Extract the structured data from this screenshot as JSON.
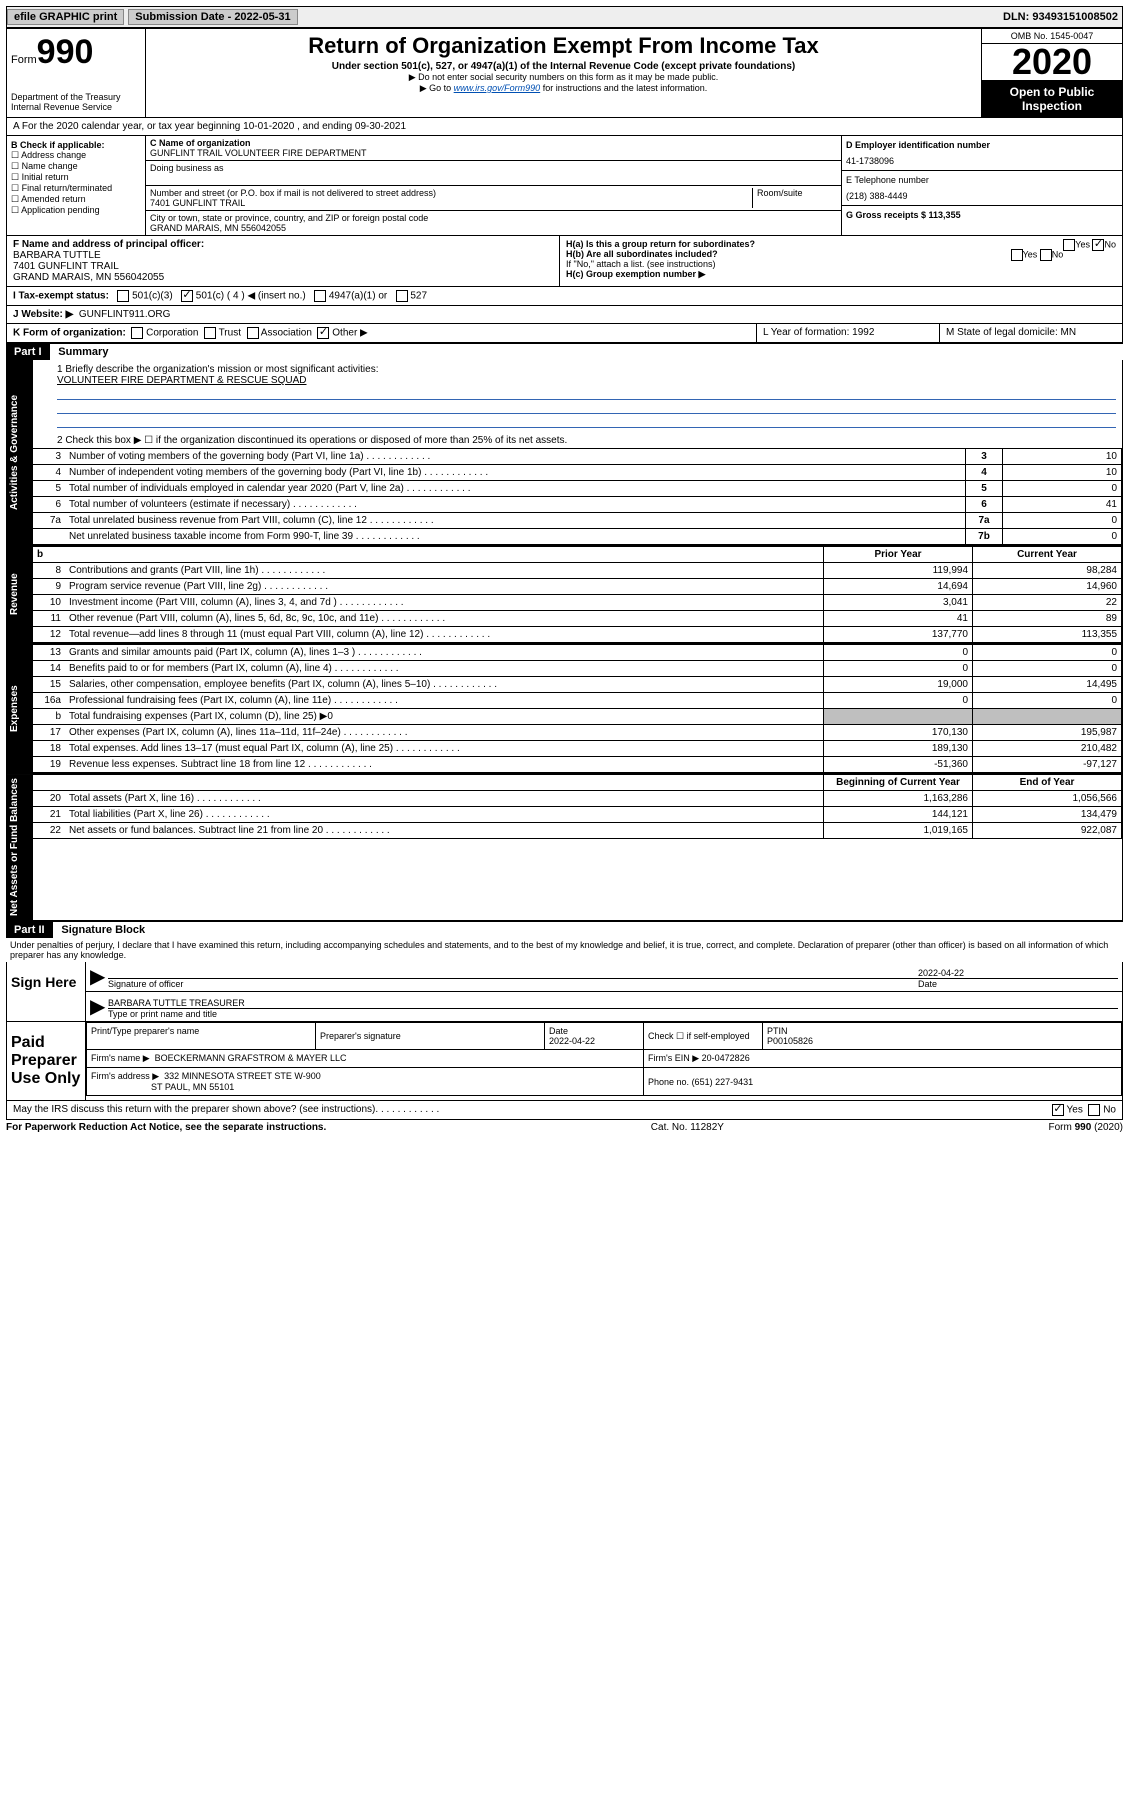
{
  "topbar": {
    "efile": "efile GRAPHIC print",
    "subdate_label": "Submission Date - 2022-05-31",
    "dln": "DLN: 93493151008502"
  },
  "header": {
    "form_label": "Form",
    "form_no": "990",
    "dept": "Department of the Treasury\nInternal Revenue Service",
    "title": "Return of Organization Exempt From Income Tax",
    "sub1": "Under section 501(c), 527, or 4947(a)(1) of the Internal Revenue Code (except private foundations)",
    "sub2": "▶ Do not enter social security numbers on this form as it may be made public.",
    "sub3_pre": "▶ Go to ",
    "sub3_link": "www.irs.gov/Form990",
    "sub3_post": " for instructions and the latest information.",
    "omb": "OMB No. 1545-0047",
    "year": "2020",
    "public": "Open to Public Inspection"
  },
  "lineA": "A For the 2020 calendar year, or tax year beginning 10-01-2020   , and ending 09-30-2021",
  "colB": {
    "title": "B Check if applicable:",
    "items": [
      "Address change",
      "Name change",
      "Initial return",
      "Final return/terminated",
      "Amended return",
      "Application pending"
    ]
  },
  "colC": {
    "name_label": "C Name of organization",
    "name": "GUNFLINT TRAIL VOLUNTEER FIRE DEPARTMENT",
    "dba_label": "Doing business as",
    "street_label": "Number and street (or P.O. box if mail is not delivered to street address)",
    "room_label": "Room/suite",
    "street": "7401 GUNFLINT TRAIL",
    "city_label": "City or town, state or province, country, and ZIP or foreign postal code",
    "city": "GRAND MARAIS, MN  556042055"
  },
  "colD": {
    "ein_label": "D Employer identification number",
    "ein": "41-1738096",
    "phone_label": "E Telephone number",
    "phone": "(218) 388-4449",
    "gross_label": "G Gross receipts $ 113,355"
  },
  "rowF": {
    "f_label": "F Name and address of principal officer:",
    "name": "BARBARA TUTTLE",
    "street": "7401 GUNFLINT TRAIL",
    "city": "GRAND MARAIS, MN  556042055",
    "ha": "H(a)  Is this a group return for subordinates?",
    "hb": "H(b)  Are all subordinates included?",
    "hb_note": "If \"No,\" attach a list. (see instructions)",
    "hc": "H(c)  Group exemption number ▶",
    "yes": "Yes",
    "no": "No"
  },
  "rowI": {
    "label": "I  Tax-exempt status:",
    "c3": "501(c)(3)",
    "c4": "501(c) ( 4 ) ◀ (insert no.)",
    "a1": "4947(a)(1) or",
    "s527": "527"
  },
  "rowJ": {
    "label": "J  Website: ▶",
    "value": "GUNFLINT911.ORG"
  },
  "rowK": {
    "label": "K Form of organization:",
    "corp": "Corporation",
    "trust": "Trust",
    "assoc": "Association",
    "other": "Other ▶",
    "l_label": "L Year of formation: 1992",
    "m_label": "M State of legal domicile: MN"
  },
  "part1": {
    "num": "Part I",
    "title": "Summary",
    "line1_label": "1  Briefly describe the organization's mission or most significant activities:",
    "line1_val": "VOLUNTEER FIRE DEPARTMENT & RESCUE SQUAD",
    "line2": "2   Check this box ▶ ☐  if the organization discontinued its operations or disposed of more than 25% of its net assets.",
    "rows_top": [
      {
        "n": "3",
        "d": "Number of voting members of the governing body (Part VI, line 1a)",
        "c": "3",
        "v": "10"
      },
      {
        "n": "4",
        "d": "Number of independent voting members of the governing body (Part VI, line 1b)",
        "c": "4",
        "v": "10"
      },
      {
        "n": "5",
        "d": "Total number of individuals employed in calendar year 2020 (Part V, line 2a)",
        "c": "5",
        "v": "0"
      },
      {
        "n": "6",
        "d": "Total number of volunteers (estimate if necessary)",
        "c": "6",
        "v": "41"
      },
      {
        "n": "7a",
        "d": "Total unrelated business revenue from Part VIII, column (C), line 12",
        "c": "7a",
        "v": "0"
      },
      {
        "n": "",
        "d": "Net unrelated business taxable income from Form 990-T, line 39",
        "c": "7b",
        "v": "0"
      }
    ],
    "head_prior": "Prior Year",
    "head_current": "Current Year",
    "revenue": [
      {
        "n": "8",
        "d": "Contributions and grants (Part VIII, line 1h)",
        "p": "119,994",
        "c": "98,284"
      },
      {
        "n": "9",
        "d": "Program service revenue (Part VIII, line 2g)",
        "p": "14,694",
        "c": "14,960"
      },
      {
        "n": "10",
        "d": "Investment income (Part VIII, column (A), lines 3, 4, and 7d )",
        "p": "3,041",
        "c": "22"
      },
      {
        "n": "11",
        "d": "Other revenue (Part VIII, column (A), lines 5, 6d, 8c, 9c, 10c, and 11e)",
        "p": "41",
        "c": "89"
      },
      {
        "n": "12",
        "d": "Total revenue—add lines 8 through 11 (must equal Part VIII, column (A), line 12)",
        "p": "137,770",
        "c": "113,355"
      }
    ],
    "expenses": [
      {
        "n": "13",
        "d": "Grants and similar amounts paid (Part IX, column (A), lines 1–3 )",
        "p": "0",
        "c": "0"
      },
      {
        "n": "14",
        "d": "Benefits paid to or for members (Part IX, column (A), line 4)",
        "p": "0",
        "c": "0"
      },
      {
        "n": "15",
        "d": "Salaries, other compensation, employee benefits (Part IX, column (A), lines 5–10)",
        "p": "19,000",
        "c": "14,495"
      },
      {
        "n": "16a",
        "d": "Professional fundraising fees (Part IX, column (A), line 11e)",
        "p": "0",
        "c": "0"
      },
      {
        "n": "b",
        "d": "Total fundraising expenses (Part IX, column (D), line 25) ▶0",
        "p": "",
        "c": "",
        "shade": true
      },
      {
        "n": "17",
        "d": "Other expenses (Part IX, column (A), lines 11a–11d, 11f–24e)",
        "p": "170,130",
        "c": "195,987"
      },
      {
        "n": "18",
        "d": "Total expenses. Add lines 13–17 (must equal Part IX, column (A), line 25)",
        "p": "189,130",
        "c": "210,482"
      },
      {
        "n": "19",
        "d": "Revenue less expenses. Subtract line 18 from line 12",
        "p": "-51,360",
        "c": "-97,127"
      }
    ],
    "head_begin": "Beginning of Current Year",
    "head_end": "End of Year",
    "netassets": [
      {
        "n": "20",
        "d": "Total assets (Part X, line 16)",
        "p": "1,163,286",
        "c": "1,056,566"
      },
      {
        "n": "21",
        "d": "Total liabilities (Part X, line 26)",
        "p": "144,121",
        "c": "134,479"
      },
      {
        "n": "22",
        "d": "Net assets or fund balances. Subtract line 21 from line 20",
        "p": "1,019,165",
        "c": "922,087"
      }
    ]
  },
  "part2": {
    "num": "Part II",
    "title": "Signature Block",
    "decl": "Under penalties of perjury, I declare that I have examined this return, including accompanying schedules and statements, and to the best of my knowledge and belief, it is true, correct, and complete. Declaration of preparer (other than officer) is based on all information of which preparer has any knowledge."
  },
  "sign": {
    "here": "Sign Here",
    "sig_officer": "Signature of officer",
    "date": "2022-04-22",
    "date_label": "Date",
    "name": "BARBARA TUTTLE  TREASURER",
    "name_label": "Type or print name and title"
  },
  "paid": {
    "title": "Paid Preparer Use Only",
    "print_label": "Print/Type preparer's name",
    "sig_label": "Preparer's signature",
    "pdate_label": "Date",
    "pdate": "2022-04-22",
    "check_label": "Check ☐ if self-employed",
    "ptin_label": "PTIN",
    "ptin": "P00105826",
    "firm_name_label": "Firm's name    ▶",
    "firm_name": "BOECKERMANN GRAFSTROM & MAYER LLC",
    "firm_ein_label": "Firm's EIN ▶",
    "firm_ein": "20-0472826",
    "firm_addr_label": "Firm's address ▶",
    "firm_addr1": "332 MINNESOTA STREET STE W-900",
    "firm_addr2": "ST PAUL, MN  55101",
    "phone_label": "Phone no.",
    "phone": "(651) 227-9431"
  },
  "irs_discuss": "May the IRS discuss this return with the preparer shown above? (see instructions)",
  "footer": {
    "left": "For Paperwork Reduction Act Notice, see the separate instructions.",
    "mid": "Cat. No. 11282Y",
    "right": "Form 990 (2020)"
  },
  "side": {
    "gov": "Activities & Governance",
    "rev": "Revenue",
    "exp": "Expenses",
    "net": "Net Assets or Fund Balances"
  }
}
